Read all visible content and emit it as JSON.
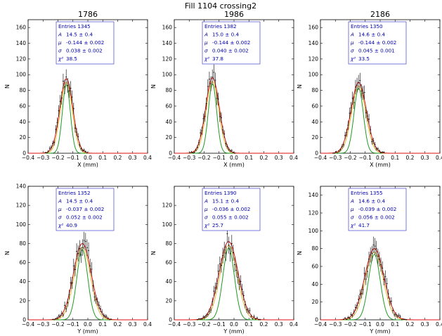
{
  "figure": {
    "title": "Fill 1104 crossing2"
  },
  "colors": {
    "stats_text": "#0000aa",
    "stats_border": "#4444cc",
    "fit_total": "#dd1111",
    "fit_narrow": "#229922",
    "fit_wide": "#ddbb33",
    "data": "#000000"
  },
  "chart_data": [
    {
      "type": "histogram",
      "title": "1786",
      "xlabel": "X (mm)",
      "ylabel": "N",
      "xlim": [
        -0.4,
        0.4
      ],
      "ylim": [
        0,
        170
      ],
      "xticks": [
        "−0.4",
        "−0.3",
        "−0.2",
        "−0.1",
        "0.0",
        "0.1",
        "0.2",
        "0.3",
        "0.4"
      ],
      "yticks": [
        "0",
        "20",
        "40",
        "60",
        "80",
        "100",
        "120",
        "140",
        "160"
      ],
      "stats": [
        {
          "sym": "",
          "text": "Entries 1345"
        },
        {
          "sym": "A",
          "text": "14.5 ±   0.4"
        },
        {
          "sym": "μ",
          "text": "-0.144 ± 0.002"
        },
        {
          "sym": "σ",
          "text": "0.038 ± 0.002"
        },
        {
          "sym": "χ²",
          "text": "38.5"
        }
      ],
      "fit": {
        "mu": -0.144,
        "sigma": 0.038,
        "peak": 95
      }
    },
    {
      "type": "histogram",
      "title": "1986",
      "xlabel": "X (mm)",
      "ylabel": "N",
      "xlim": [
        -0.4,
        0.4
      ],
      "ylim": [
        0,
        170
      ],
      "xticks": [
        "−0.4",
        "−0.3",
        "−0.2",
        "−0.1",
        "0.0",
        "0.1",
        "0.2",
        "0.3",
        "0.4"
      ],
      "yticks": [
        "0",
        "20",
        "40",
        "60",
        "80",
        "100",
        "120",
        "140",
        "160"
      ],
      "stats": [
        {
          "sym": "",
          "text": "Entries 1382"
        },
        {
          "sym": "A",
          "text": "15.0 ±   0.4"
        },
        {
          "sym": "μ",
          "text": "-0.144 ± 0.002"
        },
        {
          "sym": "σ",
          "text": "0.040 ± 0.002"
        },
        {
          "sym": "χ²",
          "text": "37.8"
        }
      ],
      "fit": {
        "mu": -0.144,
        "sigma": 0.04,
        "peak": 96
      }
    },
    {
      "type": "histogram",
      "title": "2186",
      "xlabel": "X (mm)",
      "ylabel": "N",
      "xlim": [
        -0.4,
        0.4
      ],
      "ylim": [
        0,
        170
      ],
      "xticks": [
        "−0.4",
        "−0.3",
        "−0.2",
        "−0.1",
        "0.0",
        "0.1",
        "0.2",
        "0.3",
        "0.4"
      ],
      "yticks": [
        "0",
        "20",
        "40",
        "60",
        "80",
        "100",
        "120",
        "140",
        "160"
      ],
      "stats": [
        {
          "sym": "",
          "text": "Entries 1350"
        },
        {
          "sym": "A",
          "text": "14.6 ±   0.4"
        },
        {
          "sym": "μ",
          "text": "-0.144 ± 0.002"
        },
        {
          "sym": "σ",
          "text": "0.045 ± 0.001"
        },
        {
          "sym": "χ²",
          "text": "33.5"
        }
      ],
      "fit": {
        "mu": -0.144,
        "sigma": 0.045,
        "peak": 90
      }
    },
    {
      "type": "histogram",
      "title": "",
      "xlabel": "Y (mm)",
      "ylabel": "N",
      "xlim": [
        -0.4,
        0.4
      ],
      "ylim": [
        0,
        140
      ],
      "xticks": [
        "−0.4",
        "−0.3",
        "−0.2",
        "−0.1",
        "0.0",
        "0.1",
        "0.2",
        "0.3",
        "0.4"
      ],
      "yticks": [
        "0",
        "20",
        "40",
        "60",
        "80",
        "100",
        "120",
        "140"
      ],
      "stats": [
        {
          "sym": "",
          "text": "Entries 1352"
        },
        {
          "sym": "A",
          "text": "14.5 ±   0.4"
        },
        {
          "sym": "μ",
          "text": "-0.037 ± 0.002"
        },
        {
          "sym": "σ",
          "text": "0.052 ± 0.002"
        },
        {
          "sym": "χ²",
          "text": "40.9"
        }
      ],
      "fit": {
        "mu": -0.037,
        "sigma": 0.052,
        "peak": 80
      }
    },
    {
      "type": "histogram",
      "title": "",
      "xlabel": "Y (mm)",
      "ylabel": "N",
      "xlim": [
        -0.4,
        0.4
      ],
      "ylim": [
        0,
        140
      ],
      "xticks": [
        "−0.4",
        "−0.3",
        "−0.2",
        "−0.1",
        "0.0",
        "0.1",
        "0.2",
        "0.3",
        "0.4"
      ],
      "yticks": [
        "0",
        "20",
        "40",
        "60",
        "80",
        "100",
        "120"
      ],
      "stats": [
        {
          "sym": "",
          "text": "Entries 1390"
        },
        {
          "sym": "A",
          "text": "15.1 ±   0.4"
        },
        {
          "sym": "μ",
          "text": "-0.036 ± 0.002"
        },
        {
          "sym": "σ",
          "text": "0.055 ± 0.002"
        },
        {
          "sym": "χ²",
          "text": "25.7"
        }
      ],
      "fit": {
        "mu": -0.036,
        "sigma": 0.055,
        "peak": 82
      }
    },
    {
      "type": "histogram",
      "title": "",
      "xlabel": "Y (mm)",
      "ylabel": "N",
      "xlim": [
        -0.4,
        0.4
      ],
      "ylim": [
        0,
        150
      ],
      "xticks": [
        "−0.4",
        "−0.3",
        "−0.2",
        "−0.1",
        "0.0",
        "0.1",
        "0.2",
        "0.3",
        "0.4"
      ],
      "yticks": [
        "0",
        "20",
        "40",
        "60",
        "80",
        "100",
        "120",
        "140"
      ],
      "stats": [
        {
          "sym": "",
          "text": "Entries 1355"
        },
        {
          "sym": "A",
          "text": "14.6 ±   0.4"
        },
        {
          "sym": "μ",
          "text": "-0.039 ± 0.002"
        },
        {
          "sym": "σ",
          "text": "0.056 ± 0.002"
        },
        {
          "sym": "χ²",
          "text": "41.7"
        }
      ],
      "fit": {
        "mu": -0.039,
        "sigma": 0.056,
        "peak": 80
      }
    }
  ]
}
